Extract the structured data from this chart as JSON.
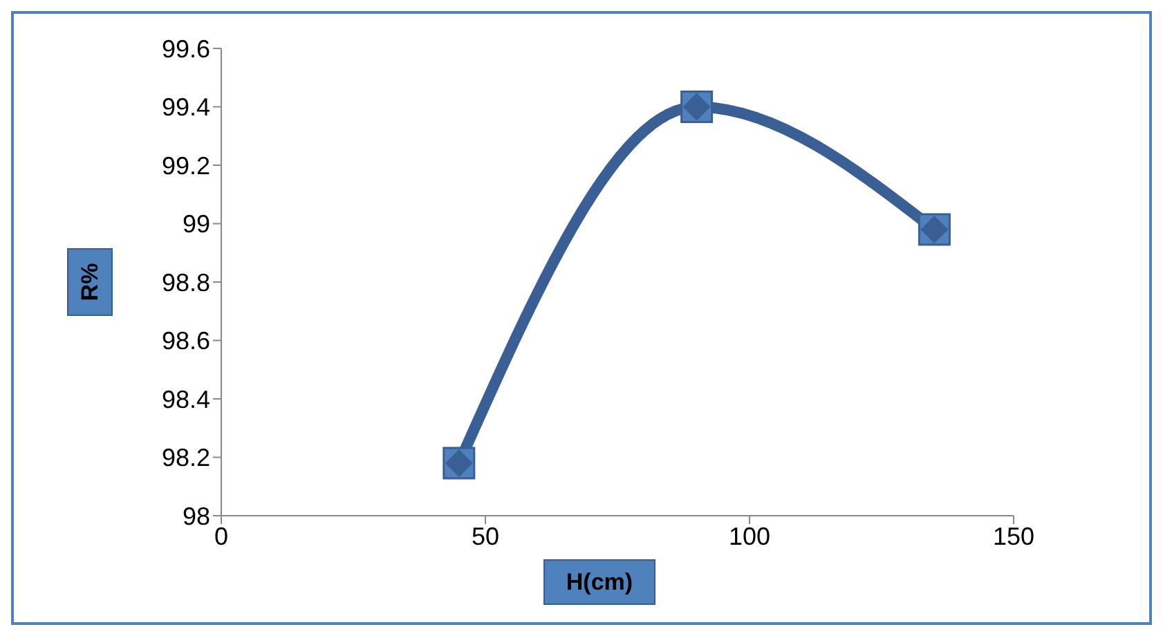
{
  "chart_data": {
    "type": "line",
    "xlabel": "H(cm)",
    "ylabel": "R%",
    "x": [
      45,
      90,
      135
    ],
    "series": [
      {
        "color": "#3a5f94",
        "values": [
          98.18,
          99.4,
          98.98
        ]
      }
    ],
    "xlim": [
      0,
      150
    ],
    "xticks": [
      0,
      50,
      100,
      150
    ],
    "ylim": [
      98,
      99.6
    ],
    "yticks": [
      98,
      98.2,
      98.4,
      98.6,
      98.8,
      99,
      99.2,
      99.4,
      99.6
    ],
    "grid": false,
    "legend": false,
    "marker": "square",
    "line_style": "solid"
  }
}
